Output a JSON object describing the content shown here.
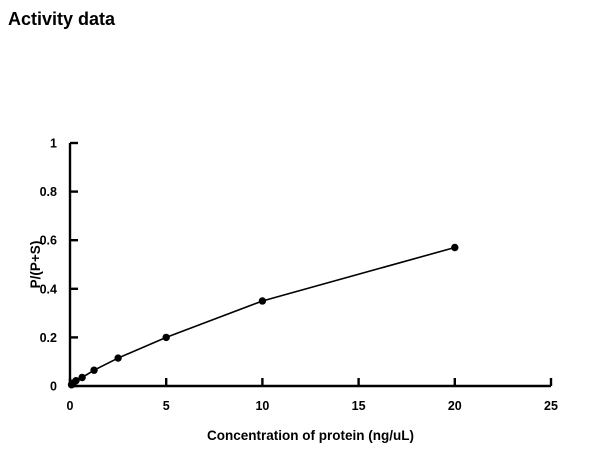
{
  "page": {
    "title": "Activity data"
  },
  "chart_data": {
    "type": "line",
    "title": "Activity data",
    "xlabel": "Concentration of protein (ng/uL)",
    "ylabel": "P/(P+S)",
    "x": [
      0.08,
      0.16,
      0.31,
      0.63,
      1.25,
      2.5,
      5,
      10,
      20
    ],
    "y": [
      0.005,
      0.012,
      0.022,
      0.035,
      0.065,
      0.115,
      0.2,
      0.35,
      0.57
    ],
    "xlim": [
      0,
      25
    ],
    "ylim": [
      0,
      1
    ],
    "xticks": [
      0,
      5,
      10,
      15,
      20,
      25
    ],
    "yticks": [
      0,
      0.2,
      0.4,
      0.6,
      0.8,
      1
    ],
    "grid": false,
    "legend": null,
    "marker": "filled-circle",
    "series_color": "#000000",
    "axis_color": "#000000",
    "background": "#ffffff"
  }
}
